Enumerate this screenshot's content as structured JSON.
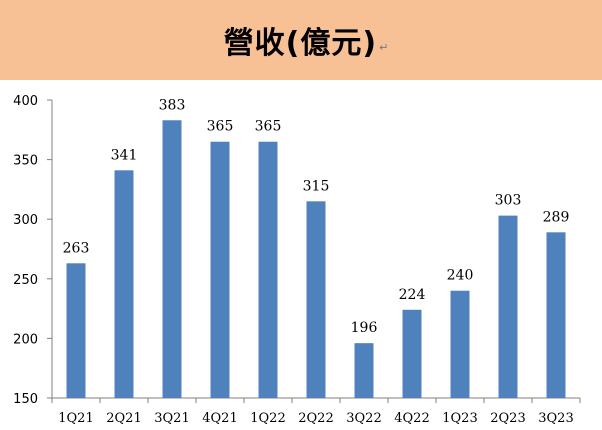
{
  "header": {
    "title": "營收(億元)",
    "mark": "↵"
  },
  "colors": {
    "banner": "#f8c095",
    "bar": "#4f81bd",
    "axis": "#808080"
  },
  "chart_data": {
    "type": "bar",
    "title": "營收(億元)",
    "xlabel": "",
    "ylabel": "",
    "categories": [
      "1Q21",
      "2Q21",
      "3Q21",
      "4Q21",
      "1Q22",
      "2Q22",
      "3Q22",
      "4Q22",
      "1Q23",
      "2Q23",
      "3Q23"
    ],
    "values": [
      263,
      341,
      383,
      365,
      365,
      315,
      196,
      224,
      240,
      303,
      289
    ],
    "ylim": [
      150,
      400
    ],
    "yticks": [
      150,
      200,
      250,
      300,
      350,
      400
    ],
    "grid": false,
    "legend": "none",
    "data_labels": true
  }
}
